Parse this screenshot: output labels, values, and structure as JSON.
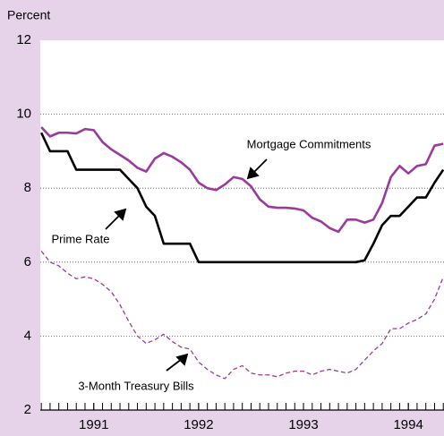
{
  "chart_data": {
    "type": "line",
    "y_label": "Percent",
    "x": [
      1990.5,
      1990.583,
      1990.667,
      1990.75,
      1990.833,
      1990.917,
      1991.0,
      1991.083,
      1991.167,
      1991.25,
      1991.333,
      1991.417,
      1991.5,
      1991.583,
      1991.667,
      1991.75,
      1991.833,
      1991.917,
      1992.0,
      1992.083,
      1992.167,
      1992.25,
      1992.333,
      1992.417,
      1992.5,
      1992.583,
      1992.667,
      1992.75,
      1992.833,
      1992.917,
      1993.0,
      1993.083,
      1993.167,
      1993.25,
      1993.333,
      1993.417,
      1993.5,
      1993.583,
      1993.667,
      1993.75,
      1993.833,
      1993.917,
      1994.0,
      1994.083,
      1994.167,
      1994.25,
      1994.333
    ],
    "series": [
      {
        "name": "Mortgage Commitments",
        "color": "#9b3a9c",
        "dash": false,
        "values": [
          9.65,
          9.4,
          9.5,
          9.5,
          9.48,
          9.6,
          9.57,
          9.25,
          9.05,
          8.9,
          8.75,
          8.55,
          8.45,
          8.8,
          8.95,
          8.85,
          8.7,
          8.5,
          8.15,
          8.0,
          7.95,
          8.1,
          8.3,
          8.25,
          8.05,
          7.7,
          7.5,
          7.47,
          7.47,
          7.45,
          7.4,
          7.2,
          7.1,
          6.92,
          6.82,
          7.15,
          7.15,
          7.07,
          7.15,
          7.6,
          8.3,
          8.6,
          8.4,
          8.6,
          8.65,
          9.15,
          9.2
        ]
      },
      {
        "name": "Prime Rate",
        "color": "#000000",
        "dash": false,
        "values": [
          9.5,
          9.0,
          9.0,
          9.0,
          8.5,
          8.5,
          8.5,
          8.5,
          8.5,
          8.5,
          8.25,
          8.0,
          7.5,
          7.25,
          6.5,
          6.5,
          6.5,
          6.5,
          6.0,
          6.0,
          6.0,
          6.0,
          6.0,
          6.0,
          6.0,
          6.0,
          6.0,
          6.0,
          6.0,
          6.0,
          6.0,
          6.0,
          6.0,
          6.0,
          6.0,
          6.0,
          6.0,
          6.05,
          6.5,
          7.0,
          7.25,
          7.25,
          7.5,
          7.75,
          7.75,
          8.15,
          8.5
        ]
      },
      {
        "name": "3-Month Treasury Bills",
        "color": "#9b3a9c",
        "dash": true,
        "values": [
          6.3,
          6.0,
          5.9,
          5.7,
          5.55,
          5.6,
          5.55,
          5.4,
          5.2,
          4.85,
          4.4,
          4.0,
          3.8,
          3.9,
          4.05,
          3.85,
          3.7,
          3.65,
          3.3,
          3.1,
          2.95,
          2.85,
          3.1,
          3.2,
          3.0,
          2.95,
          2.95,
          2.9,
          3.0,
          3.05,
          3.05,
          2.95,
          3.05,
          3.1,
          3.05,
          3.0,
          3.1,
          3.35,
          3.6,
          3.8,
          4.2,
          4.2,
          4.35,
          4.45,
          4.6,
          5.0,
          5.6
        ]
      }
    ],
    "xlim": [
      1990.49,
      1994.34
    ],
    "xticks": [
      {
        "value": 1991,
        "label": "1991"
      },
      {
        "value": 1992,
        "label": "1992"
      },
      {
        "value": 1993,
        "label": "1993"
      },
      {
        "value": 1994,
        "label": "1994"
      }
    ],
    "ylim": [
      2,
      12
    ],
    "yticks": [
      2,
      4,
      6,
      8,
      10,
      12
    ],
    "grid": true,
    "background": "#e6d3ea"
  }
}
